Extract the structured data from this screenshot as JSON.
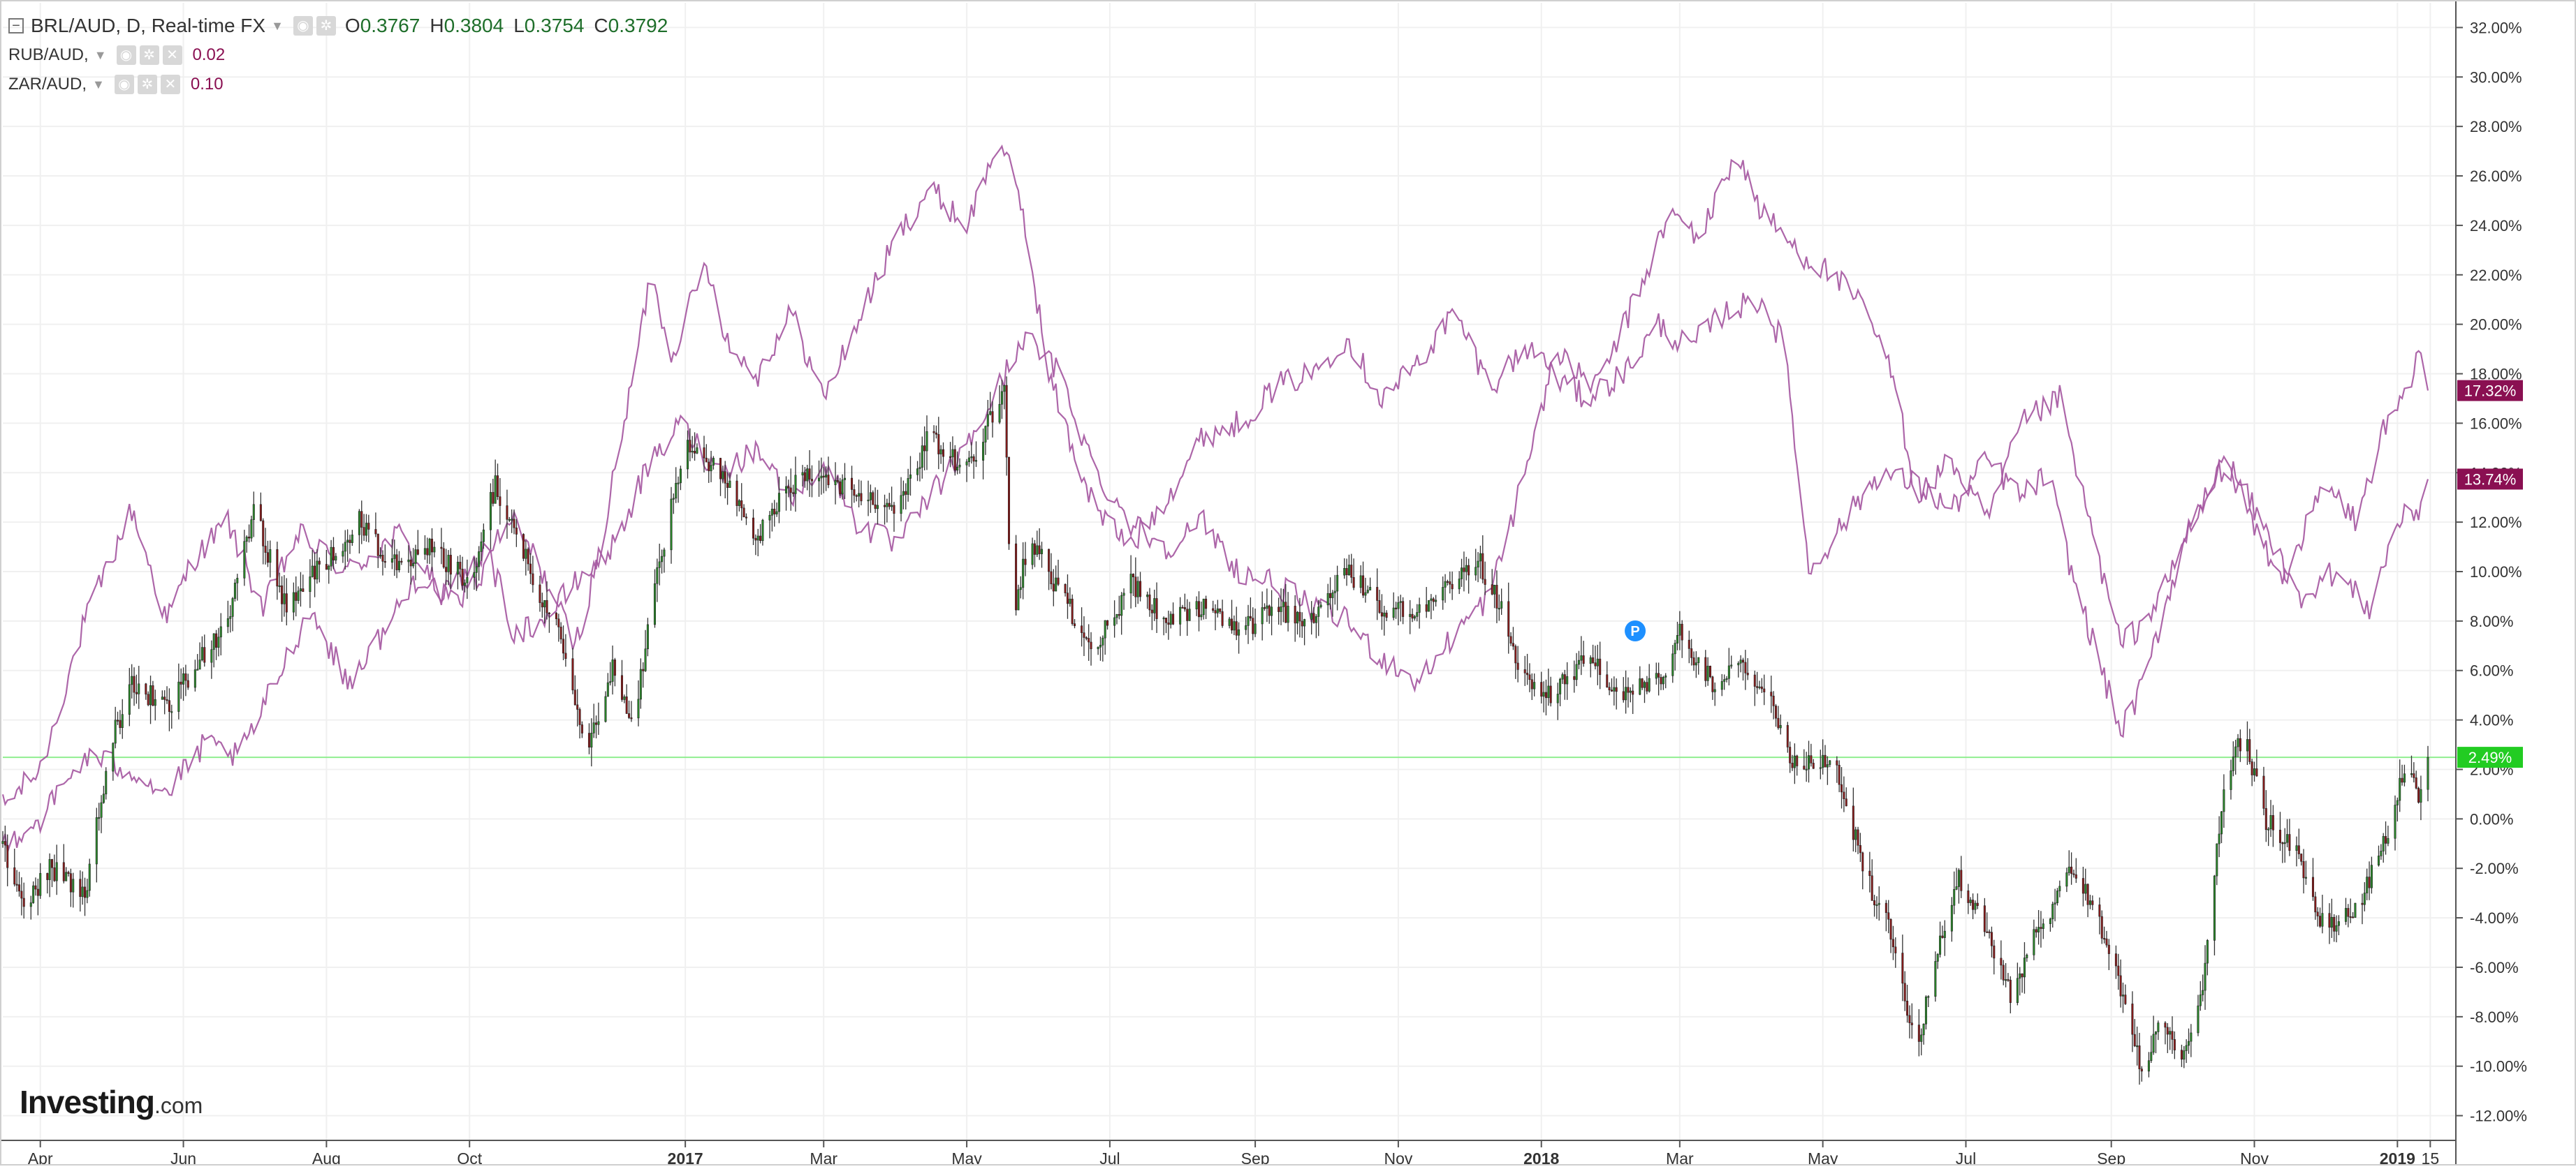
{
  "legend": {
    "main": {
      "symbol_label": "BRL/AUD, D, Real-time FX",
      "ohlc": [
        {
          "key": "O",
          "value": "0.3767"
        },
        {
          "key": "H",
          "value": "0.3804"
        },
        {
          "key": "L",
          "value": "0.3754"
        },
        {
          "key": "C",
          "value": "0.3792"
        }
      ]
    },
    "overlays": [
      {
        "label": "RUB/AUD,",
        "value": "0.02"
      },
      {
        "label": "ZAR/AUD,",
        "value": "0.10"
      }
    ]
  },
  "branding": {
    "logo_main": "Investing",
    "logo_suffix": ".com"
  },
  "colors": {
    "up_candle": "#2a8a2a",
    "down_candle": "#8b1a1a",
    "wick": "#333333",
    "overlay_line": "#a455a0",
    "baseline": "#90ee90",
    "badge_baseline": "#22cc22",
    "badge_overlay": "#8a1052",
    "grid": "#f0f0f0",
    "event_marker": "#1e90ff"
  },
  "axis_icons": {
    "event_marker": "P"
  },
  "chart_data": {
    "type": "candlestick-with-line-overlays",
    "y_axis": {
      "unit": "percent",
      "range": [
        -13,
        33
      ],
      "ticks": [
        "-12.00%",
        "-10.00%",
        "-8.00%",
        "-6.00%",
        "-4.00%",
        "-2.00%",
        "0.00%",
        "2.00%",
        "4.00%",
        "6.00%",
        "8.00%",
        "10.00%",
        "12.00%",
        "14.00%",
        "16.00%",
        "18.00%",
        "20.00%",
        "22.00%",
        "24.00%",
        "26.00%",
        "28.00%",
        "30.00%",
        "32.00%"
      ]
    },
    "x_axis": {
      "range": [
        "2016-03-16",
        "2019-01-14"
      ],
      "ticks": [
        {
          "label": "Apr",
          "date": "2016-04-01",
          "bold": false
        },
        {
          "label": "Jun",
          "date": "2016-06-01",
          "bold": false
        },
        {
          "label": "Aug",
          "date": "2016-08-01",
          "bold": false
        },
        {
          "label": "Oct",
          "date": "2016-10-01",
          "bold": false
        },
        {
          "label": "2017",
          "date": "2017-01-01",
          "bold": true
        },
        {
          "label": "Mar",
          "date": "2017-03-01",
          "bold": false
        },
        {
          "label": "May",
          "date": "2017-05-01",
          "bold": false
        },
        {
          "label": "Jul",
          "date": "2017-07-01",
          "bold": false
        },
        {
          "label": "Sep",
          "date": "2017-09-01",
          "bold": false
        },
        {
          "label": "Nov",
          "date": "2017-11-01",
          "bold": false
        },
        {
          "label": "2018",
          "date": "2018-01-01",
          "bold": true
        },
        {
          "label": "Mar",
          "date": "2018-03-01",
          "bold": false
        },
        {
          "label": "May",
          "date": "2018-05-01",
          "bold": false
        },
        {
          "label": "Jul",
          "date": "2018-07-01",
          "bold": false
        },
        {
          "label": "Sep",
          "date": "2018-09-01",
          "bold": false
        },
        {
          "label": "Nov",
          "date": "2018-11-01",
          "bold": false
        },
        {
          "label": "2019",
          "date": "2019-01-01",
          "bold": true
        },
        {
          "label": "15",
          "date": "2019-01-15",
          "bold": false
        }
      ]
    },
    "baseline": {
      "value": 2.49,
      "label": "2.49%"
    },
    "badges": [
      {
        "label": "17.32%",
        "value": 17.32,
        "style": "overlay"
      },
      {
        "label": "13.74%",
        "value": 13.74,
        "style": "overlay"
      },
      {
        "label": "2.49%",
        "value": 2.49,
        "style": "baseline"
      }
    ],
    "event_marker": {
      "date": "2018-02-10",
      "value": 7.6
    },
    "main_series": {
      "name": "BRL/AUD",
      "anchors": [
        [
          "2016-03-16",
          -1.0
        ],
        [
          "2016-03-25",
          -3.5
        ],
        [
          "2016-04-05",
          -2.0
        ],
        [
          "2016-04-20",
          -3.0
        ],
        [
          "2016-05-01",
          3.0
        ],
        [
          "2016-05-10",
          5.5
        ],
        [
          "2016-05-25",
          4.5
        ],
        [
          "2016-06-05",
          6.0
        ],
        [
          "2016-06-20",
          8.0
        ],
        [
          "2016-07-01",
          12.5
        ],
        [
          "2016-07-15",
          8.5
        ],
        [
          "2016-08-01",
          10.5
        ],
        [
          "2016-08-15",
          12.0
        ],
        [
          "2016-09-01",
          10.0
        ],
        [
          "2016-09-15",
          11.0
        ],
        [
          "2016-10-01",
          9.5
        ],
        [
          "2016-10-12",
          13.5
        ],
        [
          "2016-10-25",
          10.5
        ],
        [
          "2016-11-10",
          7.0
        ],
        [
          "2016-11-20",
          3.0
        ],
        [
          "2016-12-01",
          6.0
        ],
        [
          "2016-12-10",
          4.0
        ],
        [
          "2016-12-20",
          10.0
        ],
        [
          "2017-01-01",
          15.0
        ],
        [
          "2017-01-15",
          14.0
        ],
        [
          "2017-02-01",
          11.5
        ],
        [
          "2017-02-15",
          13.5
        ],
        [
          "2017-03-01",
          14.0
        ],
        [
          "2017-03-15",
          13.0
        ],
        [
          "2017-04-01",
          12.5
        ],
        [
          "2017-04-15",
          15.5
        ],
        [
          "2017-05-01",
          14.0
        ],
        [
          "2017-05-10",
          16.0
        ],
        [
          "2017-05-17",
          17.5
        ],
        [
          "2017-05-20",
          8.0
        ],
        [
          "2017-05-28",
          11.5
        ],
        [
          "2017-06-10",
          9.0
        ],
        [
          "2017-06-25",
          7.0
        ],
        [
          "2017-07-10",
          9.5
        ],
        [
          "2017-07-25",
          8.0
        ],
        [
          "2017-08-10",
          8.5
        ],
        [
          "2017-08-25",
          7.5
        ],
        [
          "2017-09-10",
          8.5
        ],
        [
          "2017-09-25",
          8.0
        ],
        [
          "2017-10-10",
          10.0
        ],
        [
          "2017-10-25",
          8.5
        ],
        [
          "2017-11-10",
          8.5
        ],
        [
          "2017-11-25",
          9.5
        ],
        [
          "2017-12-05",
          10.5
        ],
        [
          "2017-12-15",
          8.5
        ],
        [
          "2017-12-25",
          5.5
        ],
        [
          "2018-01-05",
          5.0
        ],
        [
          "2018-01-20",
          6.5
        ],
        [
          "2018-02-05",
          5.0
        ],
        [
          "2018-02-20",
          5.5
        ],
        [
          "2018-03-01",
          7.5
        ],
        [
          "2018-03-15",
          5.5
        ],
        [
          "2018-03-25",
          6.5
        ],
        [
          "2018-04-05",
          5.5
        ],
        [
          "2018-04-20",
          2.0
        ],
        [
          "2018-05-05",
          2.5
        ],
        [
          "2018-05-20",
          -2.5
        ],
        [
          "2018-06-01",
          -5.0
        ],
        [
          "2018-06-10",
          -9.5
        ],
        [
          "2018-06-18",
          -5.5
        ],
        [
          "2018-06-28",
          -2.5
        ],
        [
          "2018-07-08",
          -4.0
        ],
        [
          "2018-07-20",
          -7.0
        ],
        [
          "2018-08-01",
          -4.5
        ],
        [
          "2018-08-15",
          -2.0
        ],
        [
          "2018-08-25",
          -3.5
        ],
        [
          "2018-09-05",
          -7.0
        ],
        [
          "2018-09-15",
          -10.5
        ],
        [
          "2018-09-22",
          -8.0
        ],
        [
          "2018-09-30",
          -10.0
        ],
        [
          "2018-10-10",
          -6.5
        ],
        [
          "2018-10-20",
          2.0
        ],
        [
          "2018-10-28",
          3.5
        ],
        [
          "2018-11-05",
          0.0
        ],
        [
          "2018-11-20",
          -1.5
        ],
        [
          "2018-12-01",
          -4.5
        ],
        [
          "2018-12-15",
          -3.5
        ],
        [
          "2018-12-25",
          -1.5
        ],
        [
          "2019-01-05",
          2.5
        ],
        [
          "2019-01-10",
          1.0
        ],
        [
          "2019-01-14",
          2.49
        ]
      ]
    },
    "overlay_series": [
      {
        "name": "RUB/AUD",
        "anchors": [
          [
            "2016-03-16",
            0.5
          ],
          [
            "2016-04-01",
            2.0
          ],
          [
            "2016-04-20",
            8.0
          ],
          [
            "2016-05-10",
            12.5
          ],
          [
            "2016-05-25",
            8.0
          ],
          [
            "2016-06-05",
            10.5
          ],
          [
            "2016-06-20",
            12.0
          ],
          [
            "2016-07-05",
            8.5
          ],
          [
            "2016-07-20",
            11.5
          ],
          [
            "2016-08-10",
            10.0
          ],
          [
            "2016-09-01",
            11.5
          ],
          [
            "2016-09-20",
            9.0
          ],
          [
            "2016-10-05",
            10.5
          ],
          [
            "2016-10-20",
            12.0
          ],
          [
            "2016-11-01",
            10.0
          ],
          [
            "2016-11-15",
            7.0
          ],
          [
            "2016-11-25",
            10.5
          ],
          [
            "2016-12-10",
            18.0
          ],
          [
            "2016-12-18",
            22.5
          ],
          [
            "2016-12-25",
            18.5
          ],
          [
            "2017-01-10",
            22.5
          ],
          [
            "2017-01-20",
            19.0
          ],
          [
            "2017-02-01",
            18.0
          ],
          [
            "2017-02-15",
            20.5
          ],
          [
            "2017-03-01",
            17.0
          ],
          [
            "2017-03-15",
            20.0
          ],
          [
            "2017-04-01",
            23.5
          ],
          [
            "2017-04-15",
            25.5
          ],
          [
            "2017-05-01",
            24.0
          ],
          [
            "2017-05-15",
            27.5
          ],
          [
            "2017-05-25",
            24.5
          ],
          [
            "2017-06-05",
            18.0
          ],
          [
            "2017-06-15",
            15.0
          ],
          [
            "2017-06-25",
            12.5
          ],
          [
            "2017-07-10",
            11.0
          ],
          [
            "2017-07-25",
            13.0
          ],
          [
            "2017-08-10",
            15.5
          ],
          [
            "2017-08-25",
            16.0
          ],
          [
            "2017-09-10",
            17.5
          ],
          [
            "2017-09-25",
            18.0
          ],
          [
            "2017-10-10",
            19.5
          ],
          [
            "2017-10-25",
            17.0
          ],
          [
            "2017-11-10",
            18.5
          ],
          [
            "2017-11-25",
            20.5
          ],
          [
            "2017-12-10",
            17.5
          ],
          [
            "2017-12-25",
            19.0
          ],
          [
            "2018-01-10",
            18.5
          ],
          [
            "2018-01-25",
            17.5
          ],
          [
            "2018-02-10",
            21.0
          ],
          [
            "2018-02-25",
            24.5
          ],
          [
            "2018-03-10",
            23.5
          ],
          [
            "2018-03-25",
            27.0
          ],
          [
            "2018-04-05",
            24.5
          ],
          [
            "2018-04-20",
            23.0
          ],
          [
            "2018-05-05",
            22.0
          ],
          [
            "2018-05-20",
            20.5
          ],
          [
            "2018-06-01",
            17.5
          ],
          [
            "2018-06-10",
            13.0
          ],
          [
            "2018-06-25",
            14.5
          ],
          [
            "2018-07-10",
            12.0
          ],
          [
            "2018-07-25",
            16.0
          ],
          [
            "2018-08-10",
            17.0
          ],
          [
            "2018-08-20",
            13.0
          ],
          [
            "2018-08-28",
            10.0
          ],
          [
            "2018-09-05",
            7.0
          ],
          [
            "2018-09-15",
            8.0
          ],
          [
            "2018-09-25",
            9.5
          ],
          [
            "2018-10-05",
            12.0
          ],
          [
            "2018-10-20",
            14.5
          ],
          [
            "2018-11-01",
            12.5
          ],
          [
            "2018-11-15",
            10.0
          ],
          [
            "2018-12-01",
            13.5
          ],
          [
            "2018-12-15",
            12.0
          ],
          [
            "2018-12-25",
            15.5
          ],
          [
            "2019-01-05",
            17.0
          ],
          [
            "2019-01-10",
            19.0
          ],
          [
            "2019-01-14",
            17.32
          ]
        ]
      },
      {
        "name": "ZAR/AUD",
        "anchors": [
          [
            "2016-03-16",
            -1.0
          ],
          [
            "2016-04-01",
            0.0
          ],
          [
            "2016-04-20",
            2.5
          ],
          [
            "2016-05-10",
            2.0
          ],
          [
            "2016-05-25",
            1.0
          ],
          [
            "2016-06-10",
            3.0
          ],
          [
            "2016-06-25",
            2.5
          ],
          [
            "2016-07-10",
            5.5
          ],
          [
            "2016-07-25",
            8.5
          ],
          [
            "2016-08-10",
            5.5
          ],
          [
            "2016-08-25",
            7.5
          ],
          [
            "2016-09-10",
            10.0
          ],
          [
            "2016-09-25",
            8.5
          ],
          [
            "2016-10-10",
            10.5
          ],
          [
            "2016-10-20",
            7.5
          ],
          [
            "2016-11-01",
            8.0
          ],
          [
            "2016-11-15",
            9.5
          ],
          [
            "2016-12-01",
            11.0
          ],
          [
            "2016-12-15",
            14.0
          ],
          [
            "2016-12-30",
            16.0
          ],
          [
            "2017-01-15",
            14.0
          ],
          [
            "2017-02-01",
            15.0
          ],
          [
            "2017-02-15",
            13.0
          ],
          [
            "2017-03-01",
            14.5
          ],
          [
            "2017-03-15",
            12.0
          ],
          [
            "2017-04-01",
            11.0
          ],
          [
            "2017-04-15",
            13.0
          ],
          [
            "2017-05-01",
            15.0
          ],
          [
            "2017-05-15",
            17.5
          ],
          [
            "2017-05-25",
            19.5
          ],
          [
            "2017-06-10",
            18.0
          ],
          [
            "2017-06-25",
            14.0
          ],
          [
            "2017-07-10",
            12.0
          ],
          [
            "2017-07-25",
            11.0
          ],
          [
            "2017-08-10",
            12.0
          ],
          [
            "2017-08-25",
            10.0
          ],
          [
            "2017-09-10",
            9.5
          ],
          [
            "2017-09-25",
            8.5
          ],
          [
            "2017-10-10",
            8.0
          ],
          [
            "2017-10-25",
            6.5
          ],
          [
            "2017-11-10",
            5.5
          ],
          [
            "2017-11-25",
            7.5
          ],
          [
            "2017-12-10",
            9.0
          ],
          [
            "2017-12-25",
            14.0
          ],
          [
            "2018-01-05",
            18.0
          ],
          [
            "2018-01-20",
            17.0
          ],
          [
            "2018-02-05",
            18.0
          ],
          [
            "2018-02-20",
            20.0
          ],
          [
            "2018-03-05",
            19.0
          ],
          [
            "2018-03-20",
            20.5
          ],
          [
            "2018-04-05",
            21.0
          ],
          [
            "2018-04-15",
            19.0
          ],
          [
            "2018-04-25",
            10.0
          ],
          [
            "2018-05-10",
            12.0
          ],
          [
            "2018-05-25",
            14.0
          ],
          [
            "2018-06-10",
            13.5
          ],
          [
            "2018-06-25",
            12.5
          ],
          [
            "2018-07-10",
            14.5
          ],
          [
            "2018-07-25",
            13.0
          ],
          [
            "2018-08-05",
            14.0
          ],
          [
            "2018-08-15",
            10.0
          ],
          [
            "2018-08-28",
            6.0
          ],
          [
            "2018-09-05",
            3.5
          ],
          [
            "2018-09-15",
            5.5
          ],
          [
            "2018-09-25",
            9.0
          ],
          [
            "2018-10-05",
            12.0
          ],
          [
            "2018-10-20",
            14.5
          ],
          [
            "2018-11-05",
            11.0
          ],
          [
            "2018-11-20",
            9.0
          ],
          [
            "2018-12-05",
            10.0
          ],
          [
            "2018-12-20",
            8.5
          ],
          [
            "2019-01-01",
            12.0
          ],
          [
            "2019-01-10",
            12.5
          ],
          [
            "2019-01-14",
            13.74
          ]
        ]
      }
    ]
  }
}
